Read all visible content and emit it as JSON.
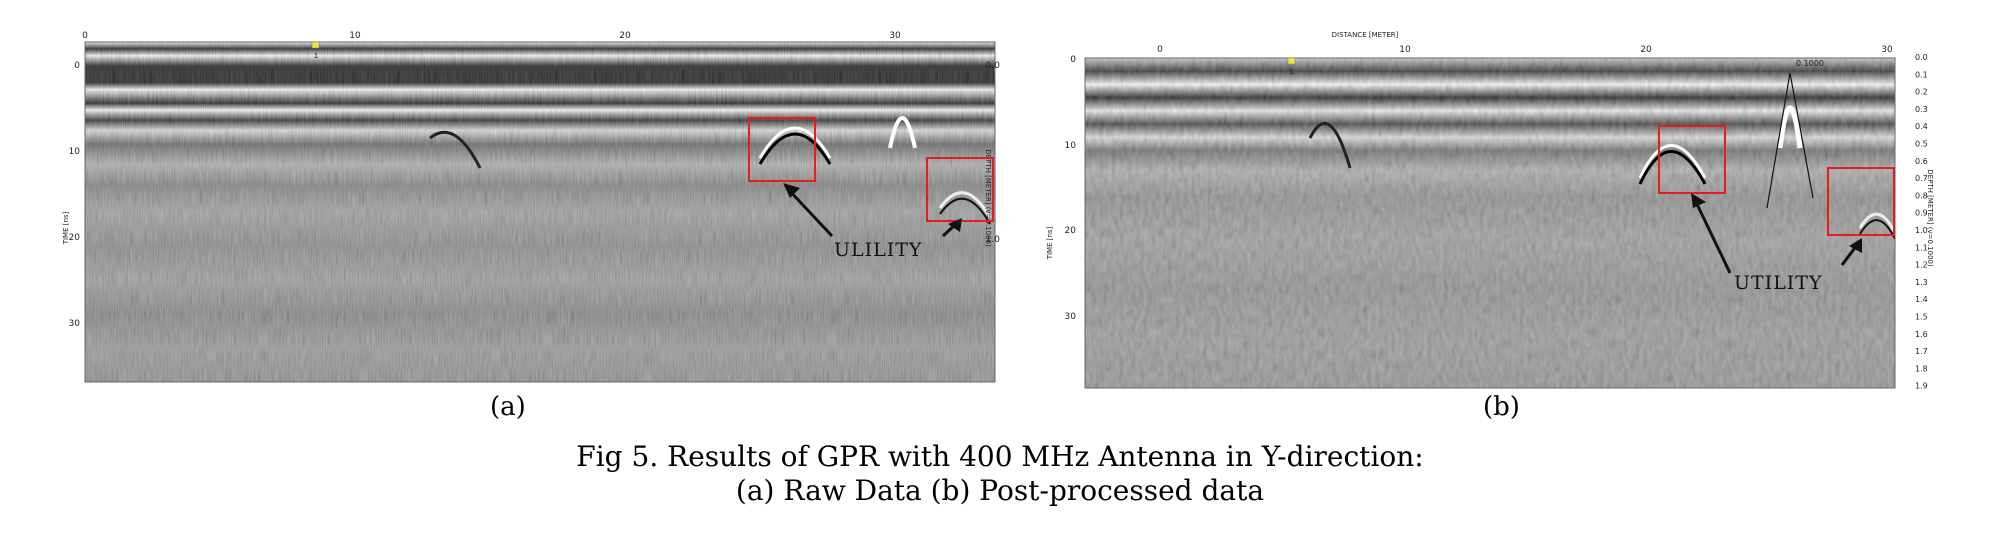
{
  "panel_a": {
    "top_ticks": [
      "0",
      "10",
      "20",
      "30"
    ],
    "left_ticks": [
      "0",
      "10",
      "20",
      "30"
    ],
    "right_ticks": [
      "0.0",
      "1.0"
    ],
    "time_label": "TIME [ns]",
    "depth_label": "DEPTH [METER] (v=0.1000)",
    "marker": "1",
    "annotation": "ULILITY"
  },
  "panel_b": {
    "title": "DISTANCE [METER]",
    "top_ticks": [
      "0",
      "10",
      "20",
      "30"
    ],
    "left_ticks": [
      "0",
      "10",
      "20",
      "30"
    ],
    "right_ticks": [
      "0.0",
      "0.1",
      "0.2",
      "0.3",
      "0.4",
      "0.5",
      "0.6",
      "0.7",
      "0.8",
      "0.9",
      "1.0",
      "1.1",
      "1.2",
      "1.3",
      "1.4",
      "1.5",
      "1.6",
      "1.7",
      "1.8",
      "1.9"
    ],
    "time_label": "TIME [ns]",
    "depth_label": "DEPTH [METER] (v=0.1000)",
    "velocity_label": "0.1000",
    "marker": "1",
    "annotation": "UTILITY"
  },
  "labels": {
    "a": "(a)",
    "b": "(b)"
  },
  "caption": {
    "line1": "Fig 5. Results of GPR with 400 MHz Antenna in Y-direction:",
    "line2": "(a) Raw Data (b) Post-processed data"
  },
  "colors": {
    "box": "#e41e1e",
    "arrow": "#111111"
  }
}
